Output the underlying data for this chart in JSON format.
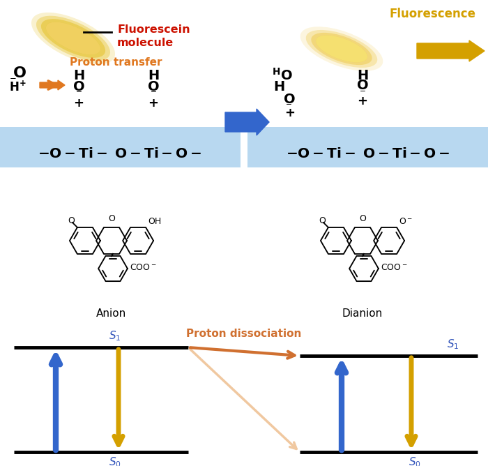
{
  "bg_color": "#ffffff",
  "fluorescein_label": "Fluorescein\nmolecule",
  "fluorescence_label": "Fluorescence",
  "proton_transfer_label": "Proton transfer",
  "proton_dissociation_label": "Proton dissociation",
  "anion_label": "Anion",
  "dianion_label": "Dianion",
  "label_red_color": "#cc1100",
  "label_orange_color": "#e07820",
  "label_yellow_color": "#d4a000",
  "label_blue_color": "#3355bb",
  "tio2_bar_color": "#b8d8f0",
  "arrow_blue_color": "#3366cc",
  "arrow_gold_color": "#d4a000",
  "arrow_orange_color": "#e07820",
  "arrow_pd_dark": "#d07030",
  "arrow_pd_light": "#f0c8a0",
  "elev_lw": 3.5,
  "abs_lw": 6,
  "em_lw": 5
}
